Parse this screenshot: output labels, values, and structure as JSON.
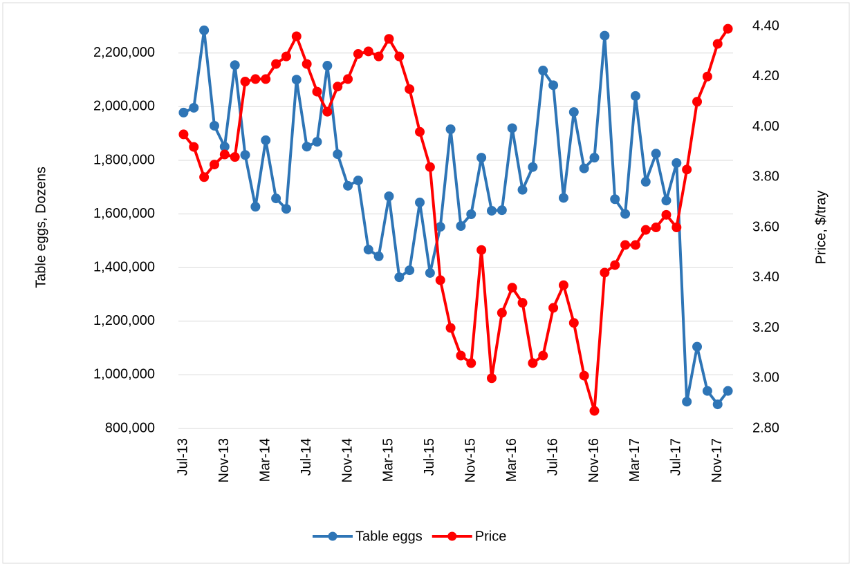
{
  "chart_data": {
    "type": "line",
    "categories": [
      "Jul-13",
      null,
      null,
      null,
      "Nov-13",
      null,
      null,
      null,
      "Mar-14",
      null,
      null,
      null,
      "Jul-14",
      null,
      null,
      null,
      "Nov-14",
      null,
      null,
      null,
      "Mar-15",
      null,
      null,
      null,
      "Jul-15",
      null,
      null,
      null,
      "Nov-15",
      null,
      null,
      null,
      "Mar-16",
      null,
      null,
      null,
      "Jul-16",
      null,
      null,
      null,
      "Nov-16",
      null,
      null,
      null,
      "Mar-17",
      null,
      null,
      null,
      "Jul-17",
      null,
      null,
      null,
      "Nov-17",
      null
    ],
    "y_label": "Table eggs, Dozens",
    "y2_label": "Price, $/tray",
    "ylim": [
      800000,
      2300000
    ],
    "yticks": [
      {
        "value": 800000,
        "label": "800,000"
      },
      {
        "value": 1000000,
        "label": "1,000,000"
      },
      {
        "value": 1200000,
        "label": "1,200,000"
      },
      {
        "value": 1400000,
        "label": "1,400,000"
      },
      {
        "value": 1600000,
        "label": "1,600,000"
      },
      {
        "value": 1800000,
        "label": "1,800,000"
      },
      {
        "value": 2000000,
        "label": "2,000,000"
      },
      {
        "value": 2200000,
        "label": "2,200,000"
      }
    ],
    "y2lim": [
      2.8,
      4.4
    ],
    "y2ticks": [
      {
        "value": 2.8,
        "label": "2.80"
      },
      {
        "value": 3.0,
        "label": "3.00"
      },
      {
        "value": 3.2,
        "label": "3.20"
      },
      {
        "value": 3.4,
        "label": "3.40"
      },
      {
        "value": 3.6,
        "label": "3.60"
      },
      {
        "value": 3.8,
        "label": "3.80"
      },
      {
        "value": 4.0,
        "label": "4.00"
      },
      {
        "value": 4.2,
        "label": "4.20"
      },
      {
        "value": 4.4,
        "label": "4.40"
      }
    ],
    "grid": true,
    "legend": "bottom",
    "series": [
      {
        "name": "Table eggs",
        "color": "#2e75b6",
        "values": [
          1978000,
          1996000,
          2285000,
          1929000,
          1851000,
          2155000,
          1820000,
          1627000,
          1875000,
          1658000,
          1619000,
          2101000,
          1851000,
          1869000,
          2153000,
          1823000,
          1705000,
          1725000,
          1467000,
          1442000,
          1666000,
          1364000,
          1390000,
          1643000,
          1380000,
          1552000,
          1916000,
          1555000,
          1599000,
          1810000,
          1612000,
          1614000,
          1920000,
          1690000,
          1775000,
          2135000,
          2080000,
          1660000,
          1980000,
          1770000,
          1810000,
          2265000,
          1655000,
          1600000,
          2040000,
          1720000,
          1825000,
          1650000,
          1790000,
          900000,
          1105000,
          940000,
          890000,
          940000
        ]
      },
      {
        "name": "Price",
        "color": "#ff0000",
        "axis": "y2",
        "values": [
          3.97,
          3.92,
          3.8,
          3.85,
          3.89,
          3.88,
          4.18,
          4.19,
          4.19,
          4.25,
          4.28,
          4.36,
          4.25,
          4.14,
          4.06,
          4.16,
          4.19,
          4.29,
          4.3,
          4.28,
          4.35,
          4.28,
          4.15,
          3.98,
          3.84,
          3.39,
          3.2,
          3.09,
          3.06,
          3.51,
          3.0,
          3.26,
          3.36,
          3.3,
          3.06,
          3.09,
          3.28,
          3.37,
          3.22,
          3.01,
          2.87,
          3.42,
          3.45,
          3.53,
          3.53,
          3.59,
          3.6,
          3.65,
          3.6,
          3.83,
          4.1,
          4.2,
          4.33,
          4.39
        ]
      }
    ]
  }
}
